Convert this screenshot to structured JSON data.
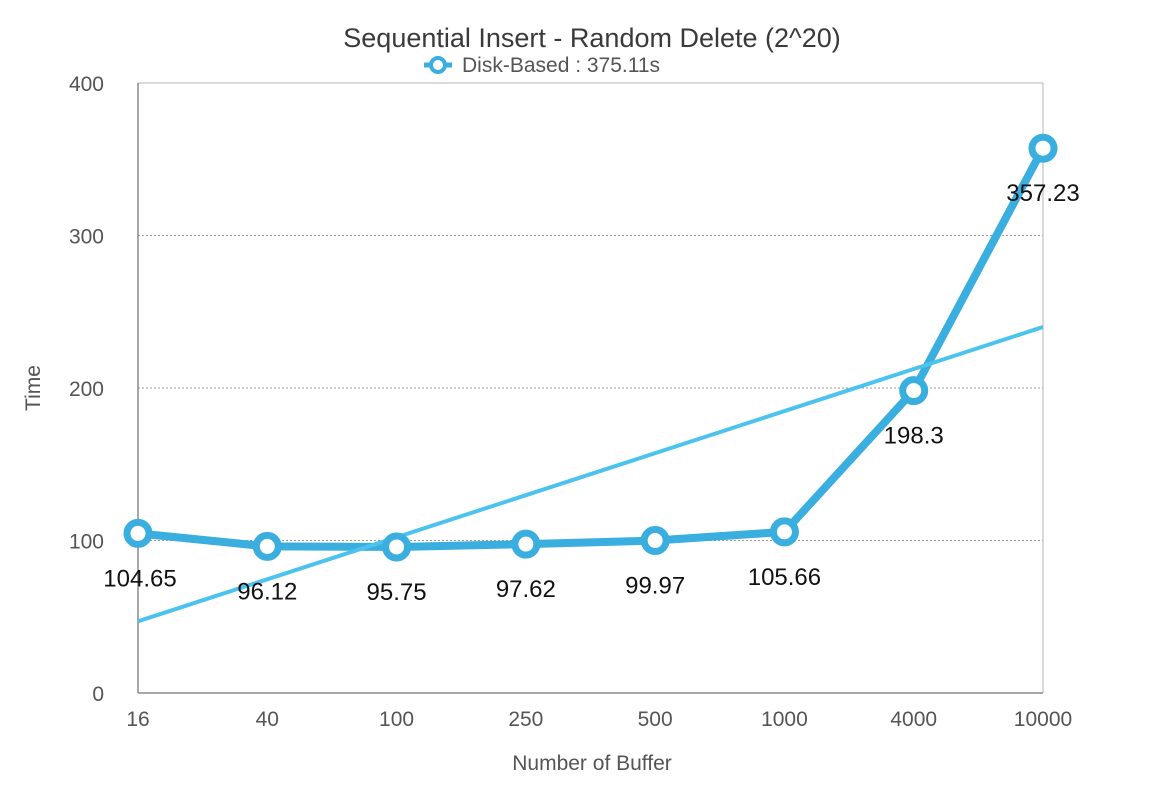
{
  "chart_data": {
    "type": "line",
    "title": "Sequential Insert - Random Delete (2^20)",
    "xlabel": "Number of Buffer",
    "ylabel": "Time",
    "categories": [
      "16",
      "40",
      "100",
      "250",
      "500",
      "1000",
      "4000",
      "10000"
    ],
    "series": [
      {
        "name": "Disk-Based : 375.11s",
        "values": [
          104.65,
          96.12,
          95.75,
          97.62,
          99.97,
          105.66,
          198.3,
          357.23
        ],
        "data_labels": [
          "104.65",
          "96.12",
          "95.75",
          "97.62",
          "99.97",
          "105.66",
          "198.3",
          "357.23"
        ],
        "color": "#3aafdf"
      }
    ],
    "trendline": {
      "start": 47,
      "end": 240,
      "color": "#4cc3ee"
    },
    "ylim": [
      0,
      400
    ],
    "yticks": [
      "0",
      "100",
      "200",
      "300",
      "400"
    ],
    "grid": true,
    "legend_position": "top-center"
  }
}
